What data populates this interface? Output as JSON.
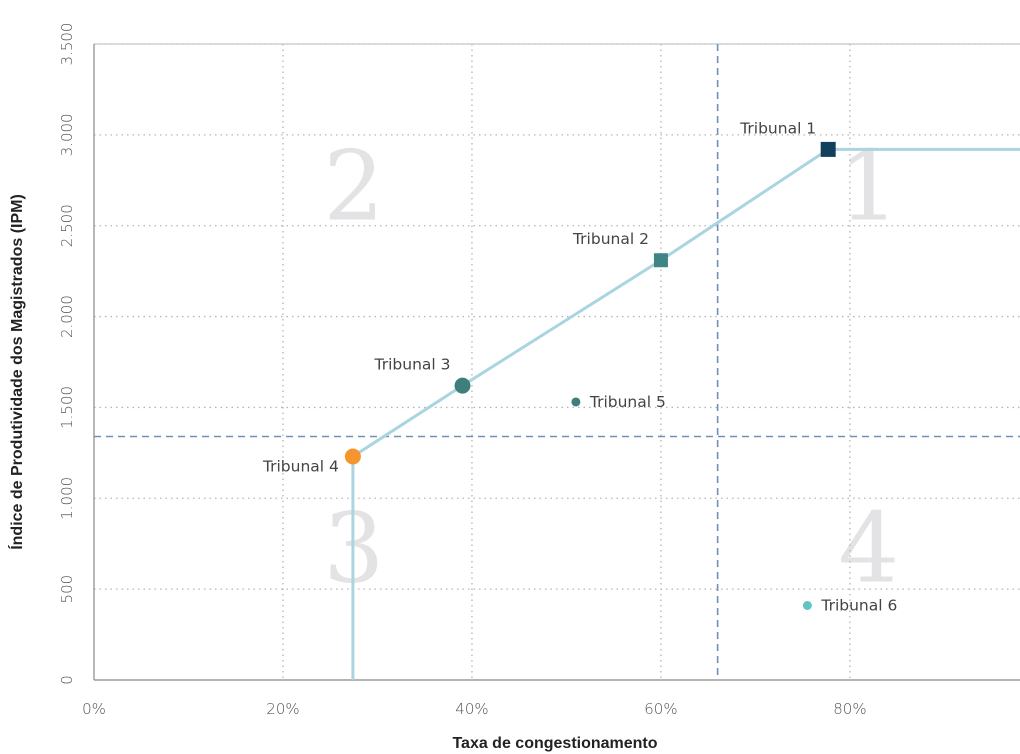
{
  "chart_data": {
    "type": "scatter",
    "xlabel": "Taxa de congestionamento",
    "ylabel": "Índice de Produtividade dos Magistrados (IPM)",
    "xlim": [
      0,
      0.98
    ],
    "ylim": [
      0,
      3500
    ],
    "x_ticks": [
      {
        "value": 0,
        "label": "0%"
      },
      {
        "value": 0.2,
        "label": "20%"
      },
      {
        "value": 0.4,
        "label": "40%"
      },
      {
        "value": 0.6,
        "label": "60%"
      },
      {
        "value": 0.8,
        "label": "80%"
      }
    ],
    "y_ticks": [
      {
        "value": 0,
        "label": "0"
      },
      {
        "value": 500,
        "label": "500"
      },
      {
        "value": 1000,
        "label": "1.000"
      },
      {
        "value": 1500,
        "label": "1.500"
      },
      {
        "value": 2000,
        "label": "2.000"
      },
      {
        "value": 2500,
        "label": "2.500"
      },
      {
        "value": 3000,
        "label": "3.000"
      },
      {
        "value": 3500,
        "label": "3.500"
      }
    ],
    "grid": true,
    "reference_lines": {
      "x": 0.66,
      "y": 1340
    },
    "frontier": [
      {
        "x": 0.274,
        "y": 0
      },
      {
        "x": 0.274,
        "y": 1230
      },
      {
        "x": 0.39,
        "y": 1620
      },
      {
        "x": 0.6,
        "y": 2310
      },
      {
        "x": 0.777,
        "y": 2920
      },
      {
        "x": 0.98,
        "y": 2920
      }
    ],
    "quadrants": [
      {
        "label": "1",
        "x": 0.82,
        "y": 2720
      },
      {
        "label": "2",
        "x": 0.275,
        "y": 2720
      },
      {
        "label": "3",
        "x": 0.275,
        "y": 730
      },
      {
        "label": "4",
        "x": 0.82,
        "y": 730
      }
    ],
    "points": [
      {
        "name": "Tribunal 1",
        "x": 0.777,
        "y": 2920,
        "marker": "square",
        "color": "#123f5c",
        "size": 15,
        "label_pos": "top-left"
      },
      {
        "name": "Tribunal 2",
        "x": 0.6,
        "y": 2310,
        "marker": "square",
        "color": "#3f8585",
        "size": 14,
        "label_pos": "top-left"
      },
      {
        "name": "Tribunal 3",
        "x": 0.39,
        "y": 1620,
        "marker": "circle",
        "color": "#3f7f7b",
        "size": 16,
        "label_pos": "top-left"
      },
      {
        "name": "Tribunal 4",
        "x": 0.274,
        "y": 1230,
        "marker": "circle",
        "color": "#f6952e",
        "size": 16,
        "label_pos": "bottom-left"
      },
      {
        "name": "Tribunal 5",
        "x": 0.51,
        "y": 1530,
        "marker": "circle",
        "color": "#3f7f7b",
        "size": 9,
        "label_pos": "right"
      },
      {
        "name": "Tribunal 6",
        "x": 0.755,
        "y": 410,
        "marker": "circle",
        "color": "#5fc4c4",
        "size": 9,
        "label_pos": "right"
      }
    ],
    "colors": {
      "frontier": "#a9d4e0",
      "reference": "#6f93b7",
      "grid": "#b5b5b5",
      "axis": "#888888"
    }
  }
}
